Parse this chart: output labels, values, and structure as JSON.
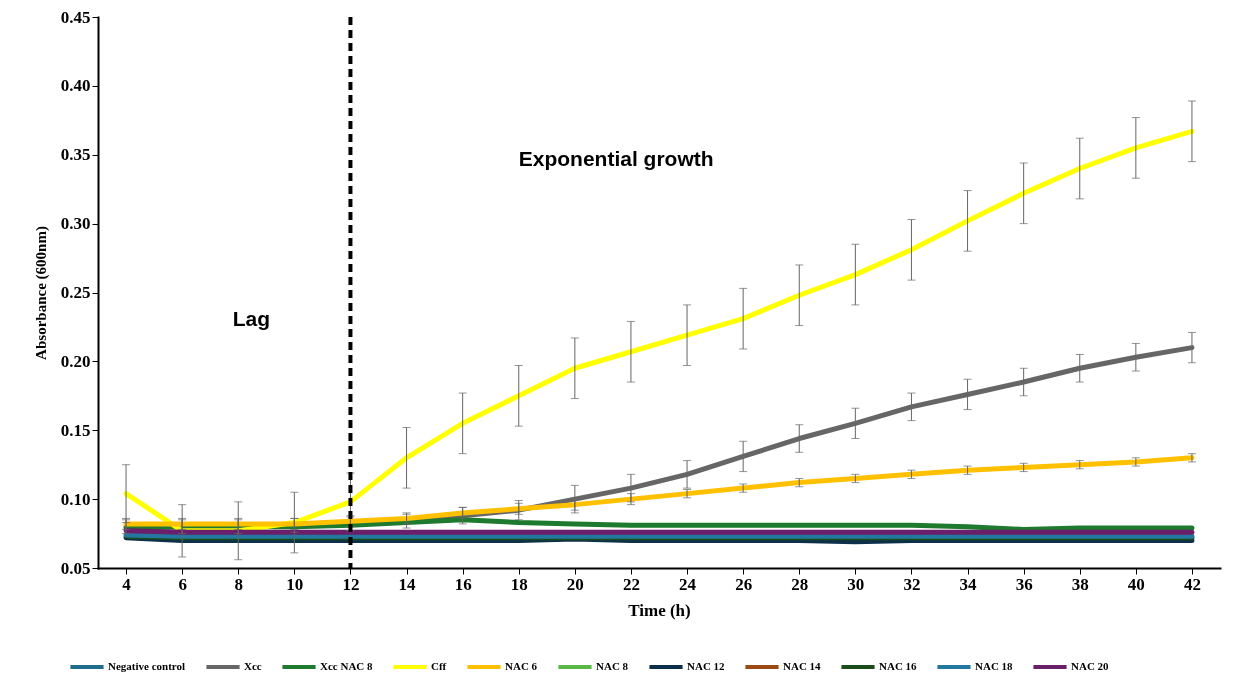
{
  "chart_data": {
    "type": "line",
    "xlabel": "Time (h)",
    "ylabel": "Absorbance (600nm)",
    "x": [
      4,
      6,
      8,
      10,
      12,
      14,
      16,
      18,
      20,
      22,
      24,
      26,
      28,
      30,
      32,
      34,
      36,
      38,
      40,
      42
    ],
    "xlim": [
      3,
      43
    ],
    "xticks": [
      4,
      6,
      8,
      10,
      12,
      14,
      16,
      18,
      20,
      22,
      24,
      26,
      28,
      30,
      32,
      34,
      36,
      38,
      40,
      42
    ],
    "ylim": [
      0.05,
      0.45
    ],
    "yticks": [
      0.05,
      {
        "value": 0.1,
        "label": "0.10"
      },
      0.15,
      {
        "value": 0.2,
        "label": "0.20"
      },
      0.25,
      {
        "value": 0.3,
        "label": "0.30"
      },
      0.35,
      {
        "value": 0.4,
        "label": "0.40"
      },
      0.45
    ],
    "grid": false,
    "legend": "bottom",
    "line_style": "solid",
    "marker": "none",
    "ref_lines": [
      {
        "axis": "x",
        "value": 12,
        "color": "#000000",
        "line_style": "dashed"
      }
    ],
    "annotations": [
      "Lag",
      "Exponential growth"
    ],
    "series": [
      {
        "name": "Negative control",
        "color": "#1f6e8c",
        "values": [
          null,
          null,
          null,
          null,
          null,
          null,
          null,
          null,
          null,
          null,
          null,
          null,
          null,
          null,
          null,
          null,
          null,
          null,
          null,
          null
        ]
      },
      {
        "name": "Xcc",
        "color": "#666666",
        "values": [
          0.08,
          0.08,
          0.08,
          0.081,
          0.082,
          0.084,
          0.088,
          0.092,
          0.1,
          0.108,
          0.118,
          0.131,
          0.144,
          0.155,
          0.167,
          0.176,
          0.185,
          0.195,
          0.203,
          0.21
        ],
        "errors": [
          0.005,
          0.005,
          0.005,
          0.005,
          0.005,
          0.005,
          0.006,
          0.007,
          0.01,
          0.01,
          0.01,
          0.011,
          0.01,
          0.011,
          0.01,
          0.011,
          0.01,
          0.01,
          0.01,
          0.011
        ]
      },
      {
        "name": "Xcc NAC 8",
        "color": "#1e7a2e",
        "values": [
          0.079,
          0.08,
          0.08,
          0.08,
          0.081,
          0.083,
          0.085,
          0.083,
          0.082,
          0.081,
          0.081,
          0.081,
          0.081,
          0.081,
          0.081,
          0.08,
          0.078,
          0.079,
          0.079,
          0.079
        ]
      },
      {
        "name": "Cff",
        "color": "#ffff00",
        "values": [
          0.104,
          0.077,
          0.077,
          0.083,
          0.098,
          0.13,
          0.155,
          0.175,
          0.195,
          0.207,
          0.219,
          0.231,
          0.248,
          0.263,
          0.281,
          0.302,
          0.322,
          0.34,
          0.355,
          0.367
        ],
        "errors": [
          0.021,
          0.019,
          0.021,
          0.022,
          0.021,
          0.022,
          0.022,
          0.022,
          0.022,
          0.022,
          0.022,
          0.022,
          0.022,
          0.022,
          0.022,
          0.022,
          0.022,
          0.022,
          0.022,
          0.022
        ]
      },
      {
        "name": "NAC 6",
        "color": "#ffc000",
        "values": [
          0.082,
          0.082,
          0.082,
          0.082,
          0.084,
          0.086,
          0.09,
          0.093,
          0.096,
          0.1,
          0.104,
          0.108,
          0.112,
          0.115,
          0.118,
          0.121,
          0.123,
          0.125,
          0.127,
          0.13
        ],
        "errors": [
          0.004,
          0.004,
          0.004,
          0.004,
          0.004,
          0.004,
          0.004,
          0.004,
          0.004,
          0.004,
          0.003,
          0.003,
          0.003,
          0.003,
          0.003,
          0.003,
          0.003,
          0.003,
          0.003,
          0.003
        ]
      },
      {
        "name": "NAC 8",
        "color": "#5ab845",
        "values": [
          null,
          null,
          null,
          null,
          null,
          null,
          null,
          null,
          null,
          null,
          null,
          null,
          null,
          null,
          null,
          null,
          null,
          null,
          null,
          null
        ]
      },
      {
        "name": "NAC 12",
        "color": "#0c2f4a",
        "values": [
          0.072,
          0.07,
          0.07,
          0.07,
          0.07,
          0.07,
          0.07,
          0.07,
          0.071,
          0.07,
          0.07,
          0.07,
          0.07,
          0.069,
          0.07,
          0.07,
          0.07,
          0.07,
          0.07,
          0.07
        ]
      },
      {
        "name": "NAC 14",
        "color": "#9c4a14",
        "values": [
          null,
          null,
          null,
          null,
          null,
          null,
          null,
          null,
          null,
          null,
          null,
          null,
          null,
          null,
          null,
          null,
          null,
          null,
          null,
          null
        ]
      },
      {
        "name": "NAC 16",
        "color": "#1a4d1a",
        "values": [
          0.073,
          0.072,
          0.072,
          0.072,
          0.072,
          0.072,
          0.072,
          0.072,
          0.072,
          0.072,
          0.072,
          0.072,
          0.072,
          0.072,
          0.072,
          0.072,
          0.072,
          0.072,
          0.072,
          0.072
        ]
      },
      {
        "name": "NAC 18",
        "color": "#2378a0",
        "values": [
          0.074,
          0.073,
          0.073,
          0.073,
          0.073,
          0.073,
          0.073,
          0.073,
          0.073,
          0.073,
          0.073,
          0.073,
          0.073,
          0.073,
          0.073,
          0.073,
          0.073,
          0.073,
          0.073,
          0.073
        ]
      },
      {
        "name": "NAC 20",
        "color": "#6a1f6a",
        "values": [
          0.077,
          0.076,
          0.076,
          0.076,
          0.076,
          0.076,
          0.076,
          0.076,
          0.076,
          0.076,
          0.076,
          0.076,
          0.076,
          0.076,
          0.076,
          0.076,
          0.076,
          0.076,
          0.076,
          0.076
        ]
      }
    ]
  }
}
